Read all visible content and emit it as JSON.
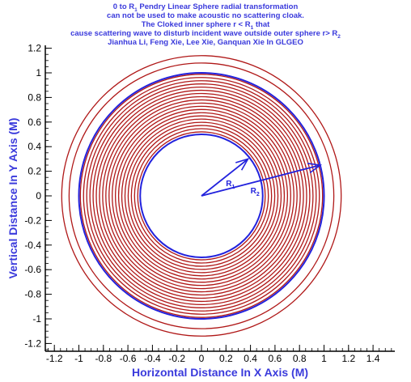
{
  "title_lines": [
    [
      "0 to R",
      "1",
      " Pendry Linear Sphere radial transformation"
    ],
    [
      "can not be used to make  acoustic no scattering cloak.",
      "",
      ""
    ],
    [
      "The  Cloked inner sphere r < R",
      "1",
      "  that"
    ],
    [
      "cause scattering  wave to disturb incident wave outside outer sphere r> R",
      "2",
      ""
    ],
    [
      "Jianhua Li, Feng Xie, Lee Xie, Ganquan Xie In GLGEO",
      "",
      ""
    ]
  ],
  "chart_data": {
    "type": "line",
    "xlabel": "Horizontal Distance In X Axis (M)",
    "ylabel": "Vertical Distance In Y Axis (M)",
    "xlim": [
      -1.3,
      1.55
    ],
    "ylim": [
      -1.3,
      1.25
    ],
    "xticks": [
      -1.2,
      -1.0,
      -0.8,
      -0.6,
      -0.4,
      -0.2,
      0,
      0.2,
      0.4,
      0.6,
      0.8,
      1.0,
      1.2,
      1.4
    ],
    "xtick_labels": [
      "-1.2",
      "-1",
      "-0.8",
      "-0.6",
      "-0.4",
      "-0.2",
      "0",
      "0.2",
      "0.4",
      "0.6",
      "0.8",
      "1",
      "1.2",
      "1.4"
    ],
    "yticks": [
      -1.2,
      -1.0,
      -0.8,
      -0.6,
      -0.4,
      -0.2,
      0,
      0.2,
      0.4,
      0.6,
      0.8,
      1.0,
      1.2
    ],
    "ytick_labels": [
      "-1.2",
      "-1",
      "-0.8",
      "-0.6",
      "-0.4",
      "-0.2",
      "0",
      "0.2",
      "0.4",
      "0.6",
      "0.8",
      "1",
      "1.2"
    ],
    "blue_circles_radius": [
      0.5,
      1.0
    ],
    "red_circles_radius": [
      0.52,
      0.546,
      0.572,
      0.598,
      0.624,
      0.65,
      0.676,
      0.702,
      0.728,
      0.754,
      0.78,
      0.806,
      0.832,
      0.858,
      0.884,
      0.91,
      0.936,
      0.962,
      0.988,
      1.08,
      1.14
    ],
    "arrows": [
      {
        "label": "R",
        "sub": "1",
        "from": [
          0,
          0
        ],
        "to": [
          0.38,
          0.3
        ],
        "label_at": [
          0.2,
          0.08
        ]
      },
      {
        "label": "R",
        "sub": "2",
        "from": [
          0,
          0
        ],
        "to": [
          0.97,
          0.25
        ],
        "label_at": [
          0.4,
          0.02
        ]
      }
    ],
    "colors": {
      "blue": "#2222dd",
      "red": "#b01818",
      "axis": "#000000",
      "label": "#3a3adc"
    }
  }
}
